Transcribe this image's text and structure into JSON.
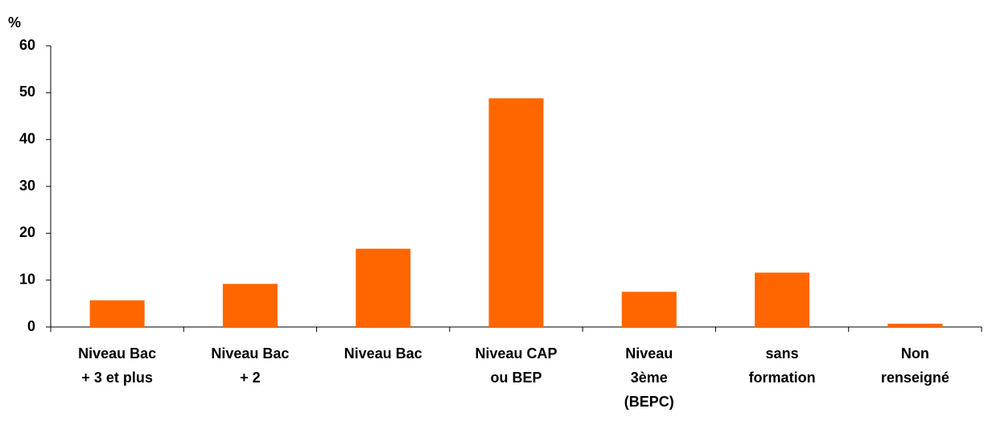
{
  "chart_data": {
    "type": "bar",
    "y_label": "%",
    "categories": [
      [
        "Niveau Bac",
        "+ 3 et plus"
      ],
      [
        "Niveau Bac",
        "+ 2"
      ],
      [
        "Niveau Bac"
      ],
      [
        "Niveau CAP",
        "ou BEP"
      ],
      [
        "Niveau",
        "3ème",
        "(BEPC)"
      ],
      [
        "sans",
        "formation"
      ],
      [
        "Non",
        "renseigné"
      ]
    ],
    "values": [
      5.7,
      9.2,
      16.7,
      48.8,
      7.5,
      11.6,
      0.7
    ],
    "color": "#ff6600",
    "ylim": [
      0,
      60
    ],
    "yticks": [
      0,
      10,
      20,
      30,
      40,
      50,
      60
    ],
    "grid": false
  }
}
